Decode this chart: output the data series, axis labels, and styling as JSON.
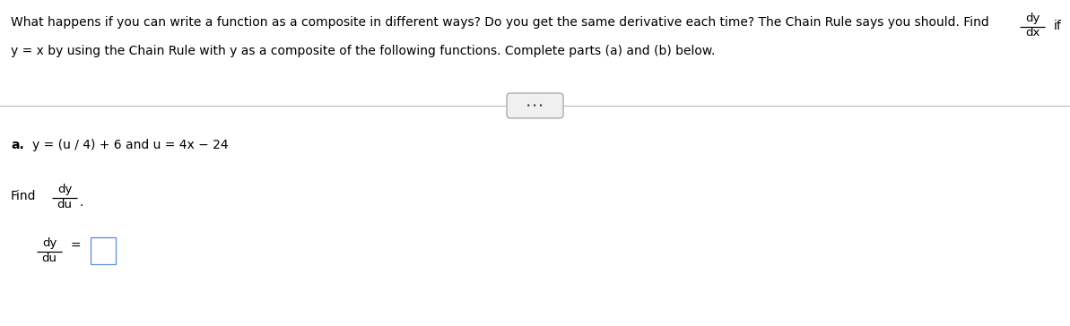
{
  "bg_color": "#ffffff",
  "text_color": "#000000",
  "line1": "What happens if you can write a function as a composite in different ways? Do you get the same derivative each time? The Chain Rule says you should. Find",
  "line1_suffix": "if",
  "line2": "y = x by using the Chain Rule with y as a composite of the following functions. Complete parts (a) and (b) below.",
  "part_a_label": "a.",
  "part_a_text": "y = (u / 4) + 6 and u = 4x − 24",
  "find_text": "Find",
  "fig_width": 11.93,
  "fig_height": 3.64,
  "dpi": 100
}
